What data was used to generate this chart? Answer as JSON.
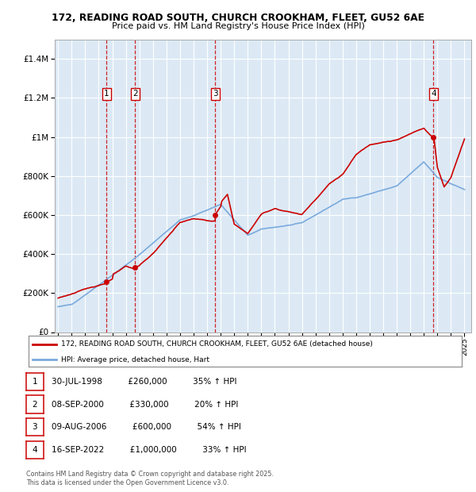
{
  "title_line1": "172, READING ROAD SOUTH, CHURCH CROOKHAM, FLEET, GU52 6AE",
  "title_line2": "Price paid vs. HM Land Registry's House Price Index (HPI)",
  "bg_color": "#dce9f5",
  "grid_color": "#ffffff",
  "red_color": "#cc0000",
  "blue_color": "#7aaadd",
  "ylim": [
    0,
    1500000
  ],
  "yticks": [
    0,
    200000,
    400000,
    600000,
    800000,
    1000000,
    1200000,
    1400000
  ],
  "ytick_labels": [
    "£0",
    "£200K",
    "£400K",
    "£600K",
    "£800K",
    "£1M",
    "£1.2M",
    "£1.4M"
  ],
  "xlim_start": 1994.75,
  "xlim_end": 2025.5,
  "transaction_dates": [
    1998.58,
    2000.69,
    2006.61,
    2022.71
  ],
  "transaction_prices": [
    260000,
    330000,
    600000,
    1000000
  ],
  "transaction_labels": [
    "1",
    "2",
    "3",
    "4"
  ],
  "legend_red": "172, READING ROAD SOUTH, CHURCH CROOKHAM, FLEET, GU52 6AE (detached house)",
  "legend_blue": "HPI: Average price, detached house, Hart",
  "table_data": [
    [
      "1",
      "30-JUL-1998",
      "£260,000",
      "35% ↑ HPI"
    ],
    [
      "2",
      "08-SEP-2000",
      "£330,000",
      "20% ↑ HPI"
    ],
    [
      "3",
      "09-AUG-2006",
      "£600,000",
      "54% ↑ HPI"
    ],
    [
      "4",
      "16-SEP-2022",
      "£1,000,000",
      "33% ↑ HPI"
    ]
  ],
  "footer": "Contains HM Land Registry data © Crown copyright and database right 2025.\nThis data is licensed under the Open Government Licence v3.0."
}
